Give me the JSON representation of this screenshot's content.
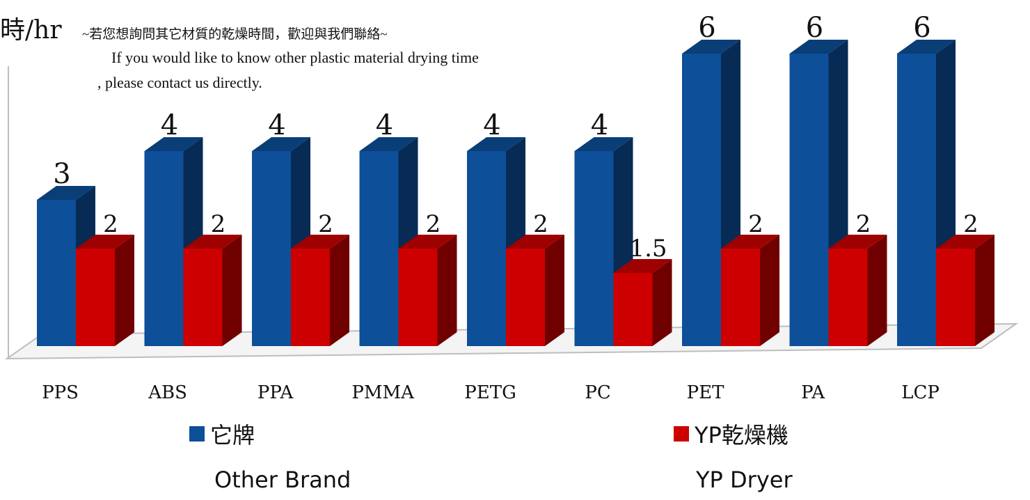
{
  "chart_data": {
    "type": "bar",
    "ylabel": "時/hr",
    "annotation_lines": [
      "~若您想詢問其它材質的乾燥時間，歡迎與我們聯絡~",
      "If you would like to know other plastic material drying time",
      ", please contact us directly."
    ],
    "categories": [
      "PPS",
      "ABS",
      "PPA",
      "PMMA",
      "PETG",
      "PC",
      "PET",
      "PA",
      "LCP"
    ],
    "series": [
      {
        "name": "它牌",
        "name_en": "Other Brand",
        "color": "#0d4f99",
        "values": [
          3,
          4,
          4,
          4,
          4,
          4,
          6,
          6,
          6
        ]
      },
      {
        "name": "YP乾燥機",
        "name_en": "YP Dryer",
        "color": "#cc0000",
        "values": [
          2,
          2,
          2,
          2,
          2,
          1.5,
          2,
          2,
          2
        ]
      }
    ],
    "data_labels": {
      "series0": [
        "3",
        "4",
        "4",
        "4",
        "4",
        "4",
        "6",
        "6",
        "6"
      ],
      "series1": [
        "2",
        "2",
        "2",
        "2",
        "2",
        "1.5",
        "2",
        "2",
        "2"
      ]
    },
    "ylim": [
      0,
      6
    ],
    "grid": false,
    "legend_position": "bottom",
    "style": "3d-column"
  }
}
